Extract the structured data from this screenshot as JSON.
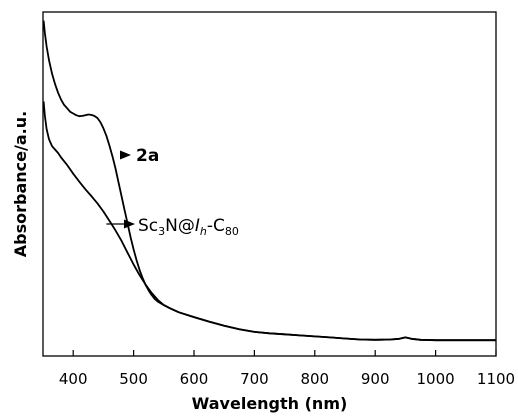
{
  "chart_data": {
    "type": "line",
    "xlabel": "Wavelength (nm)",
    "ylabel": "Absorbance/a.u.",
    "xlim": [
      350,
      1100
    ],
    "ylim": [
      0,
      1
    ],
    "x_ticks": [
      400,
      500,
      600,
      700,
      800,
      900,
      1000,
      1100
    ],
    "y_ticks": [],
    "grid": false,
    "legend": "none",
    "line_color": "#000000",
    "series": [
      {
        "name": "2a",
        "label_parts": {
          "main": "2a"
        },
        "arrow_from_x": 490,
        "points": [
          [
            351,
            0.975
          ],
          [
            353,
            0.94
          ],
          [
            356,
            0.9
          ],
          [
            360,
            0.86
          ],
          [
            365,
            0.82
          ],
          [
            370,
            0.79
          ],
          [
            375,
            0.765
          ],
          [
            380,
            0.745
          ],
          [
            385,
            0.73
          ],
          [
            390,
            0.72
          ],
          [
            395,
            0.71
          ],
          [
            400,
            0.705
          ],
          [
            405,
            0.7
          ],
          [
            410,
            0.697
          ],
          [
            415,
            0.698
          ],
          [
            420,
            0.7
          ],
          [
            425,
            0.702
          ],
          [
            430,
            0.701
          ],
          [
            435,
            0.698
          ],
          [
            440,
            0.692
          ],
          [
            445,
            0.68
          ],
          [
            450,
            0.662
          ],
          [
            455,
            0.64
          ],
          [
            460,
            0.612
          ],
          [
            465,
            0.58
          ],
          [
            470,
            0.545
          ],
          [
            475,
            0.505
          ],
          [
            480,
            0.465
          ],
          [
            485,
            0.425
          ],
          [
            490,
            0.385
          ],
          [
            495,
            0.345
          ],
          [
            500,
            0.31
          ],
          [
            505,
            0.278
          ],
          [
            510,
            0.25
          ],
          [
            515,
            0.226
          ],
          [
            520,
            0.206
          ],
          [
            525,
            0.19
          ],
          [
            530,
            0.177
          ],
          [
            535,
            0.166
          ],
          [
            540,
            0.158
          ],
          [
            550,
            0.148
          ],
          [
            560,
            0.139
          ],
          [
            575,
            0.127
          ],
          [
            600,
            0.113
          ],
          [
            625,
            0.1
          ],
          [
            650,
            0.088
          ],
          [
            675,
            0.078
          ],
          [
            700,
            0.07
          ],
          [
            725,
            0.066
          ],
          [
            750,
            0.063
          ],
          [
            775,
            0.06
          ],
          [
            800,
            0.057
          ],
          [
            825,
            0.054
          ],
          [
            850,
            0.051
          ],
          [
            875,
            0.048
          ],
          [
            900,
            0.047
          ],
          [
            925,
            0.048
          ],
          [
            940,
            0.05
          ],
          [
            950,
            0.054
          ],
          [
            960,
            0.05
          ],
          [
            975,
            0.047
          ],
          [
            1000,
            0.046
          ],
          [
            1025,
            0.046
          ],
          [
            1050,
            0.046
          ],
          [
            1075,
            0.046
          ],
          [
            1100,
            0.046
          ]
        ]
      },
      {
        "name": "Sc3N@Ih-C80",
        "label_parts": {
          "pre": "Sc",
          "sub1": "3",
          "mid": "N@",
          "ital": "I",
          "sub2": "h",
          "dash": "-C",
          "sub3": "80"
        },
        "arrow_from_x": 455,
        "points": [
          [
            351,
            0.74
          ],
          [
            353,
            0.7
          ],
          [
            356,
            0.66
          ],
          [
            360,
            0.63
          ],
          [
            365,
            0.61
          ],
          [
            370,
            0.6
          ],
          [
            375,
            0.59
          ],
          [
            380,
            0.577
          ],
          [
            390,
            0.555
          ],
          [
            400,
            0.53
          ],
          [
            410,
            0.507
          ],
          [
            420,
            0.485
          ],
          [
            430,
            0.465
          ],
          [
            440,
            0.444
          ],
          [
            450,
            0.42
          ],
          [
            460,
            0.393
          ],
          [
            470,
            0.365
          ],
          [
            480,
            0.335
          ],
          [
            490,
            0.3
          ],
          [
            500,
            0.266
          ],
          [
            510,
            0.235
          ],
          [
            520,
            0.207
          ],
          [
            530,
            0.183
          ],
          [
            540,
            0.163
          ],
          [
            550,
            0.148
          ],
          [
            560,
            0.139
          ],
          [
            575,
            0.127
          ],
          [
            600,
            0.113
          ],
          [
            625,
            0.1
          ],
          [
            650,
            0.088
          ],
          [
            675,
            0.078
          ],
          [
            700,
            0.07
          ],
          [
            725,
            0.066
          ],
          [
            750,
            0.063
          ],
          [
            775,
            0.06
          ],
          [
            800,
            0.057
          ],
          [
            825,
            0.054
          ],
          [
            850,
            0.051
          ],
          [
            875,
            0.048
          ],
          [
            900,
            0.047
          ],
          [
            925,
            0.048
          ],
          [
            940,
            0.05
          ],
          [
            950,
            0.054
          ],
          [
            960,
            0.05
          ],
          [
            975,
            0.047
          ],
          [
            1000,
            0.046
          ],
          [
            1025,
            0.046
          ],
          [
            1050,
            0.046
          ],
          [
            1075,
            0.046
          ],
          [
            1100,
            0.046
          ]
        ]
      }
    ]
  }
}
